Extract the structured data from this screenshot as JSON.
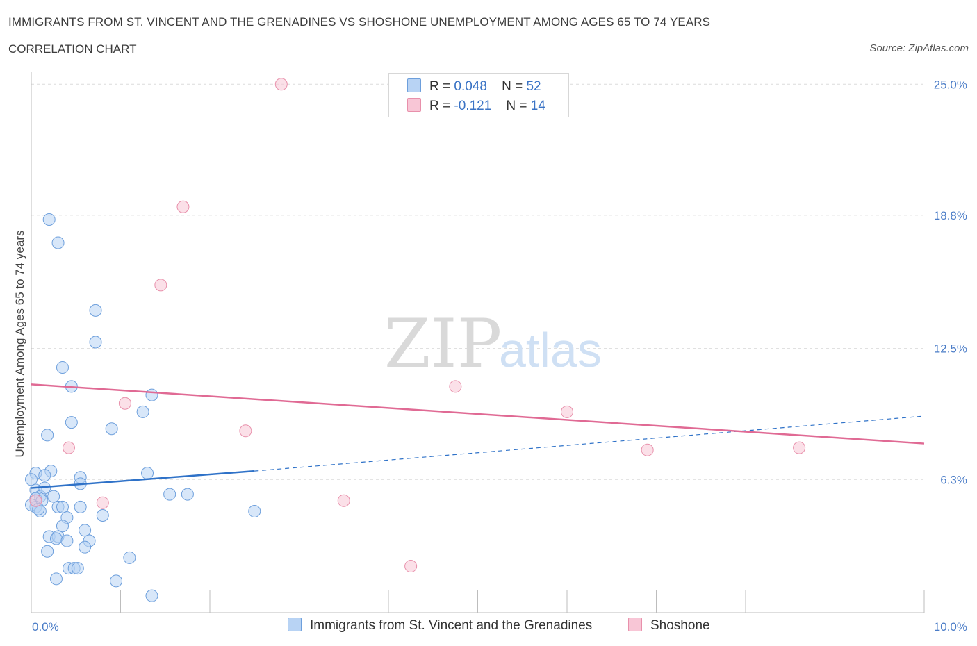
{
  "header": {
    "title": "IMMIGRANTS FROM ST. VINCENT AND THE GRENADINES VS SHOSHONE UNEMPLOYMENT AMONG AGES 65 TO 74 YEARS",
    "subtitle": "CORRELATION CHART",
    "source": "Source: ZipAtlas.com"
  },
  "watermark": {
    "zip": "ZIP",
    "atlas": "atlas"
  },
  "legend": {
    "r_label": "R =",
    "n_label": "N =",
    "series1": {
      "r": "0.048",
      "n": "52"
    },
    "series2": {
      "r": "-0.121",
      "n": "14"
    }
  },
  "colors": {
    "series1_fill": "#b8d3f4",
    "series1_stroke": "#6d9fdc",
    "series1_line": "#2f72c8",
    "series2_fill": "#f8c6d6",
    "series2_stroke": "#e890ab",
    "series2_line": "#e06a94",
    "grid": "#dcdcdc",
    "tick_text": "#4a7cc7"
  },
  "chart_data": {
    "type": "scatter",
    "title": "IMMIGRANTS FROM ST. VINCENT AND THE GRENADINES VS SHOSHONE UNEMPLOYMENT AMONG AGES 65 TO 74 YEARS",
    "ylabel": "Unemployment Among Ages 65 to 74 years",
    "xlim": [
      0,
      10
    ],
    "ylim": [
      0,
      25.6
    ],
    "x_tick_labels": [
      "0.0%",
      "10.0%"
    ],
    "y_ticks": [
      6.3,
      12.5,
      18.8,
      25.0
    ],
    "y_tick_labels": [
      "6.3%",
      "12.5%",
      "18.8%",
      "25.0%"
    ],
    "grid": true,
    "legend_position": "top-center",
    "series": [
      {
        "name": "Immigrants from St. Vincent and the Grenadines",
        "r": 0.048,
        "n": 52,
        "trend": {
          "x0": 0.0,
          "y0": 5.9,
          "x1": 2.5,
          "y1": 6.7,
          "dashed_to_x": 10.0,
          "dashed_y1": 9.3
        },
        "points": [
          [
            0.2,
            18.6
          ],
          [
            0.3,
            17.5
          ],
          [
            0.72,
            14.3
          ],
          [
            0.72,
            12.8
          ],
          [
            0.35,
            11.6
          ],
          [
            0.45,
            10.7
          ],
          [
            1.35,
            10.3
          ],
          [
            0.45,
            9.0
          ],
          [
            0.9,
            8.7
          ],
          [
            1.25,
            9.5
          ],
          [
            0.18,
            8.4
          ],
          [
            0.05,
            6.6
          ],
          [
            0.22,
            6.7
          ],
          [
            0.15,
            6.5
          ],
          [
            0.55,
            6.4
          ],
          [
            0.55,
            6.1
          ],
          [
            1.3,
            6.6
          ],
          [
            0.0,
            6.3
          ],
          [
            0.05,
            5.8
          ],
          [
            0.1,
            5.5
          ],
          [
            0.15,
            5.9
          ],
          [
            0.25,
            5.5
          ],
          [
            0.05,
            5.4
          ],
          [
            0.12,
            5.3
          ],
          [
            0.3,
            5.0
          ],
          [
            0.05,
            5.0
          ],
          [
            0.35,
            5.0
          ],
          [
            0.55,
            5.0
          ],
          [
            0.1,
            4.8
          ],
          [
            0.4,
            4.5
          ],
          [
            0.8,
            4.6
          ],
          [
            1.55,
            5.6
          ],
          [
            1.75,
            5.6
          ],
          [
            2.5,
            4.8
          ],
          [
            0.35,
            4.1
          ],
          [
            0.6,
            3.9
          ],
          [
            0.2,
            3.6
          ],
          [
            0.3,
            3.6
          ],
          [
            0.28,
            3.5
          ],
          [
            0.4,
            3.4
          ],
          [
            0.65,
            3.4
          ],
          [
            0.6,
            3.1
          ],
          [
            0.18,
            2.9
          ],
          [
            1.1,
            2.6
          ],
          [
            0.42,
            2.1
          ],
          [
            0.48,
            2.1
          ],
          [
            0.52,
            2.1
          ],
          [
            0.28,
            1.6
          ],
          [
            0.95,
            1.5
          ],
          [
            1.35,
            0.8
          ],
          [
            0.0,
            5.1
          ],
          [
            0.08,
            4.9
          ]
        ]
      },
      {
        "name": "Shoshone",
        "r": -0.121,
        "n": 14,
        "trend": {
          "x0": 0.0,
          "y0": 10.8,
          "x1": 10.0,
          "y1": 8.0
        },
        "points": [
          [
            2.8,
            25.0
          ],
          [
            1.7,
            19.2
          ],
          [
            1.45,
            15.5
          ],
          [
            1.05,
            9.9
          ],
          [
            0.42,
            7.8
          ],
          [
            2.4,
            8.6
          ],
          [
            4.75,
            10.7
          ],
          [
            6.0,
            9.5
          ],
          [
            6.9,
            7.7
          ],
          [
            8.6,
            7.8
          ],
          [
            3.5,
            5.3
          ],
          [
            0.8,
            5.2
          ],
          [
            4.25,
            2.2
          ],
          [
            0.05,
            5.3
          ]
        ]
      }
    ]
  },
  "bottom_legend": {
    "series1": "Immigrants from St. Vincent and the Grenadines",
    "series2": "Shoshone"
  }
}
